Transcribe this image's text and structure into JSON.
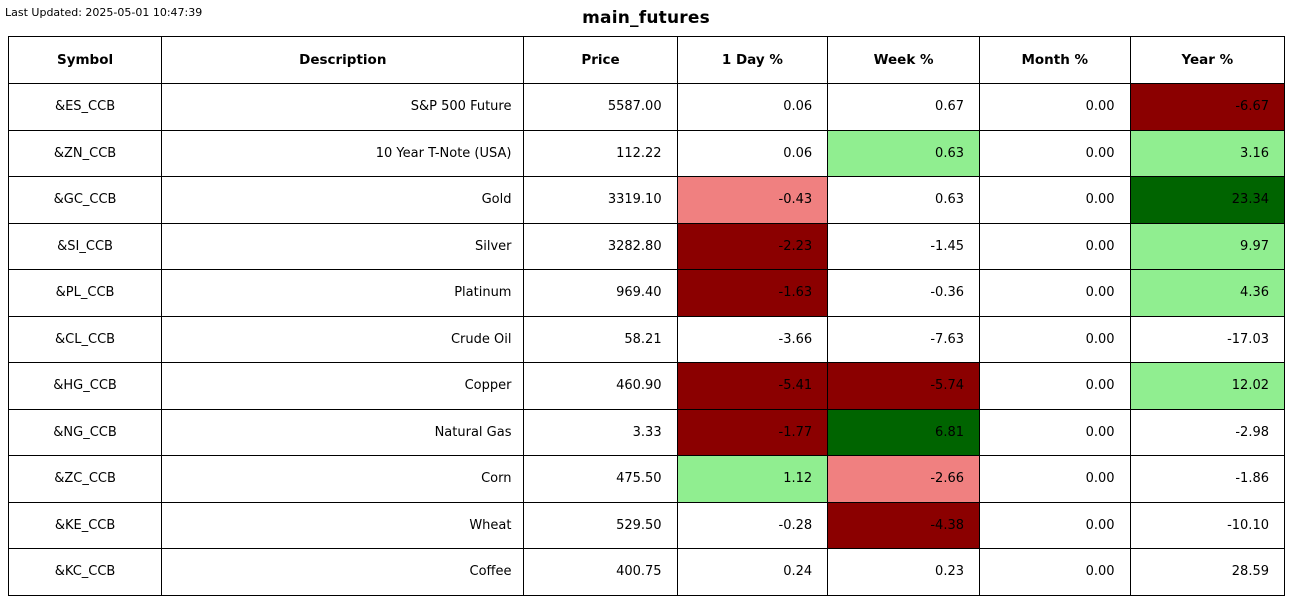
{
  "header": {
    "last_updated": "Last Updated: 2025-05-01 10:47:39",
    "title": "main_futures"
  },
  "colors": {
    "white": "#ffffff",
    "dark_red": "#8b0000",
    "light_red": "#f08080",
    "light_green": "#90ee90",
    "dark_green": "#006400",
    "border": "#000000",
    "text": "#000000"
  },
  "chart_data": {
    "type": "table",
    "title": "main_futures",
    "columns": [
      "Symbol",
      "Description",
      "Price",
      "1 Day %",
      "Week %",
      "Month %",
      "Year %"
    ],
    "rows": [
      {
        "cells": [
          {
            "t": "&ES_CCB"
          },
          {
            "t": "S&P 500 Future"
          },
          {
            "t": "5587.00"
          },
          {
            "t": "0.06"
          },
          {
            "t": "0.67"
          },
          {
            "t": "0.00"
          },
          {
            "t": "-6.67",
            "bg": "dark_red"
          }
        ]
      },
      {
        "cells": [
          {
            "t": "&ZN_CCB"
          },
          {
            "t": "10 Year T-Note (USA)"
          },
          {
            "t": "112.22"
          },
          {
            "t": "0.06"
          },
          {
            "t": "0.63",
            "bg": "light_green"
          },
          {
            "t": "0.00"
          },
          {
            "t": "3.16",
            "bg": "light_green"
          }
        ]
      },
      {
        "cells": [
          {
            "t": "&GC_CCB"
          },
          {
            "t": "Gold"
          },
          {
            "t": "3319.10"
          },
          {
            "t": "-0.43",
            "bg": "light_red"
          },
          {
            "t": "0.63"
          },
          {
            "t": "0.00"
          },
          {
            "t": "23.34",
            "bg": "dark_green"
          }
        ]
      },
      {
        "cells": [
          {
            "t": "&SI_CCB"
          },
          {
            "t": "Silver"
          },
          {
            "t": "3282.80"
          },
          {
            "t": "-2.23",
            "bg": "dark_red"
          },
          {
            "t": "-1.45"
          },
          {
            "t": "0.00"
          },
          {
            "t": "9.97",
            "bg": "light_green"
          }
        ]
      },
      {
        "cells": [
          {
            "t": "&PL_CCB"
          },
          {
            "t": "Platinum"
          },
          {
            "t": "969.40"
          },
          {
            "t": "-1.63",
            "bg": "dark_red"
          },
          {
            "t": "-0.36"
          },
          {
            "t": "0.00"
          },
          {
            "t": "4.36",
            "bg": "light_green"
          }
        ]
      },
      {
        "cells": [
          {
            "t": "&CL_CCB"
          },
          {
            "t": "Crude Oil"
          },
          {
            "t": "58.21"
          },
          {
            "t": "-3.66"
          },
          {
            "t": "-7.63"
          },
          {
            "t": "0.00"
          },
          {
            "t": "-17.03"
          }
        ]
      },
      {
        "cells": [
          {
            "t": "&HG_CCB"
          },
          {
            "t": "Copper"
          },
          {
            "t": "460.90"
          },
          {
            "t": "-5.41",
            "bg": "dark_red"
          },
          {
            "t": "-5.74",
            "bg": "dark_red"
          },
          {
            "t": "0.00"
          },
          {
            "t": "12.02",
            "bg": "light_green"
          }
        ]
      },
      {
        "cells": [
          {
            "t": "&NG_CCB"
          },
          {
            "t": "Natural Gas"
          },
          {
            "t": "3.33"
          },
          {
            "t": "-1.77",
            "bg": "dark_red"
          },
          {
            "t": "6.81",
            "bg": "dark_green"
          },
          {
            "t": "0.00"
          },
          {
            "t": "-2.98"
          }
        ]
      },
      {
        "cells": [
          {
            "t": "&ZC_CCB"
          },
          {
            "t": "Corn"
          },
          {
            "t": "475.50"
          },
          {
            "t": "1.12",
            "bg": "light_green"
          },
          {
            "t": "-2.66",
            "bg": "light_red"
          },
          {
            "t": "0.00"
          },
          {
            "t": "-1.86"
          }
        ]
      },
      {
        "cells": [
          {
            "t": "&KE_CCB"
          },
          {
            "t": "Wheat"
          },
          {
            "t": "529.50"
          },
          {
            "t": "-0.28"
          },
          {
            "t": "-4.38",
            "bg": "dark_red"
          },
          {
            "t": "0.00"
          },
          {
            "t": "-10.10"
          }
        ]
      },
      {
        "cells": [
          {
            "t": "&KC_CCB"
          },
          {
            "t": "Coffee"
          },
          {
            "t": "400.75"
          },
          {
            "t": "0.24"
          },
          {
            "t": "0.23"
          },
          {
            "t": "0.00"
          },
          {
            "t": "28.59"
          }
        ]
      }
    ]
  }
}
